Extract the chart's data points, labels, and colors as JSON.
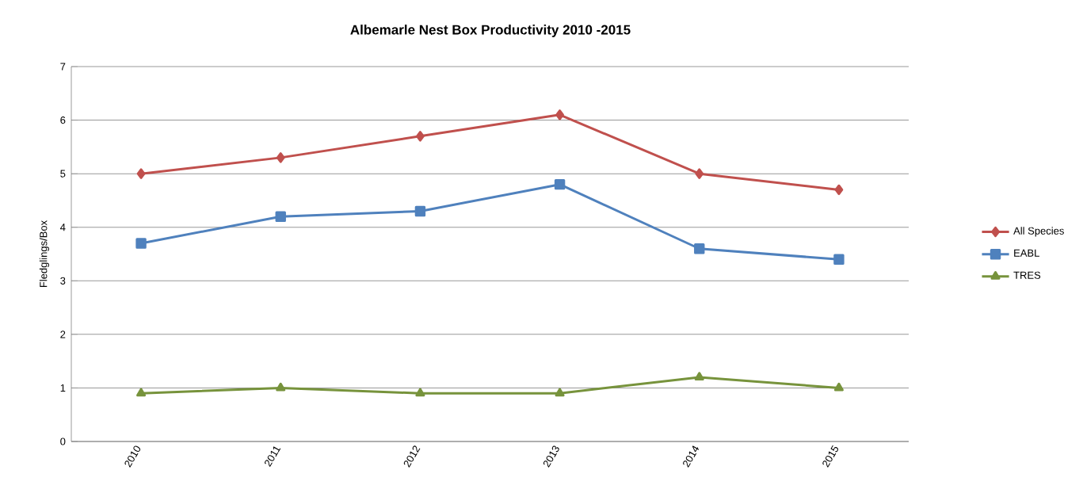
{
  "chart_data": {
    "type": "line",
    "title": "Albemarle Nest Box Productivity 2010 -2015",
    "ylabel": "Fledglings/Box",
    "categories": [
      "2010",
      "2011",
      "2012",
      "2013",
      "2014",
      "2015"
    ],
    "series": [
      {
        "name": "All Species",
        "color": "#c0504d",
        "marker": "diamond",
        "values": [
          5.0,
          5.3,
          5.7,
          6.1,
          5.0,
          4.7
        ]
      },
      {
        "name": "EABL",
        "color": "#4f81bd",
        "marker": "square",
        "values": [
          3.7,
          4.2,
          4.3,
          4.8,
          3.6,
          3.4
        ]
      },
      {
        "name": "TRES",
        "color": "#77933c",
        "marker": "triangle",
        "values": [
          0.9,
          1.0,
          0.9,
          0.9,
          1.2,
          1.0
        ]
      }
    ],
    "ylim": [
      0,
      7
    ],
    "yticks": [
      0,
      1,
      2,
      3,
      4,
      5,
      6,
      7
    ],
    "grid": "y",
    "legend": "right",
    "line_style": "solid"
  }
}
